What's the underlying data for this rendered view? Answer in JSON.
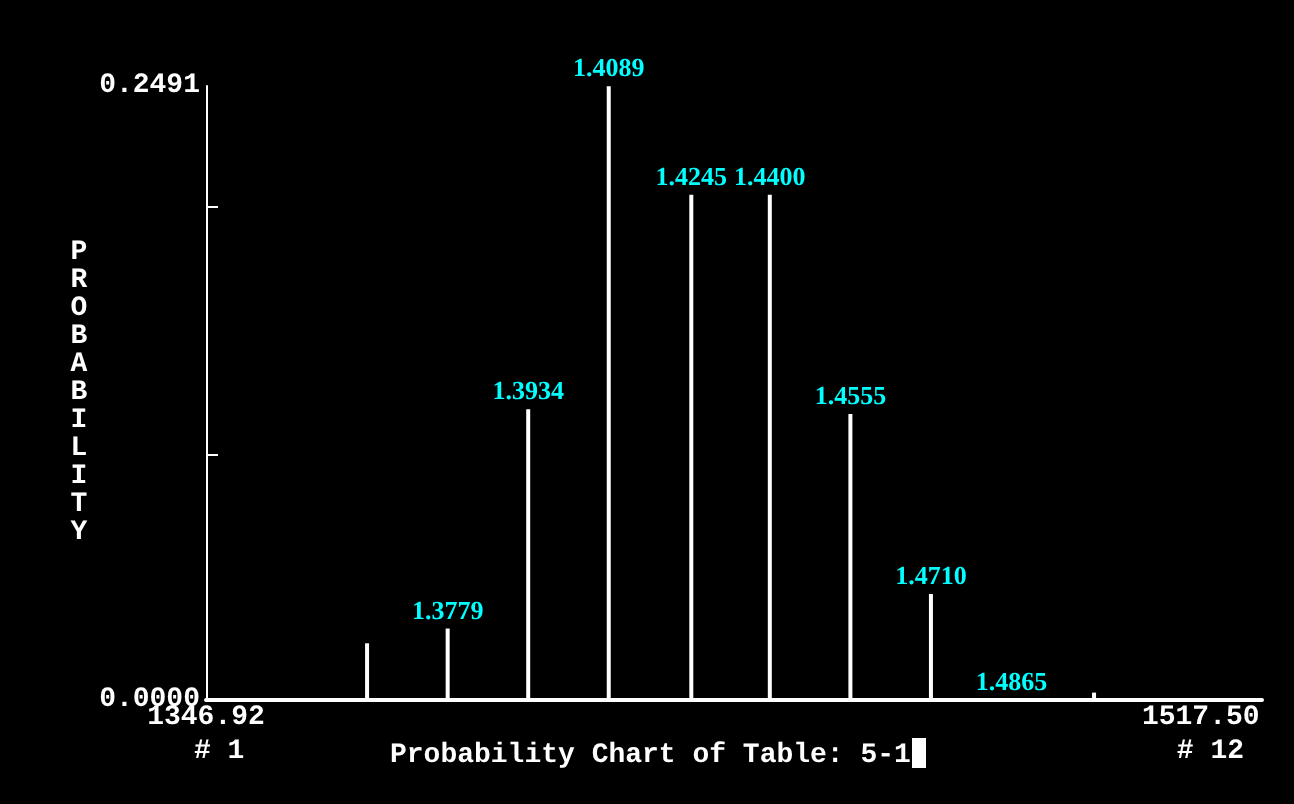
{
  "chart_data": {
    "type": "bar",
    "title": "Probability Chart of Table: 5-1",
    "ylabel": "PROBABILITY",
    "x": [
      1374.54,
      1388.36,
      1402.17,
      1415.98,
      1430.14,
      1443.6,
      1457.42,
      1471.23,
      1485.04,
      1499.2
    ],
    "values": [
      0.023,
      0.029,
      0.118,
      0.249,
      0.205,
      0.205,
      0.116,
      0.043,
      0,
      0.003
    ],
    "color": "#ffffff",
    "xlim": [
      1346.92,
      1528
    ],
    "xticks": [
      1346.92,
      {
        "value": 1517.5,
        "label": "1517.50"
      }
    ],
    "ylim": [
      0,
      0.2491
    ],
    "yticks": [
      {
        "value": 0,
        "label": "0.0000"
      },
      {
        "value": 0.1,
        "label": null
      },
      {
        "value": 0.2,
        "label": null
      },
      {
        "value": 0.2491,
        "label": "0.2491"
      }
    ],
    "grid": false,
    "annotations": [
      "1.3779",
      "1.3934",
      "1.4089",
      "1.4245",
      "1.4400",
      "1.4555",
      "1.4710",
      "1.4865",
      "# 1",
      "# 12"
    ]
  }
}
